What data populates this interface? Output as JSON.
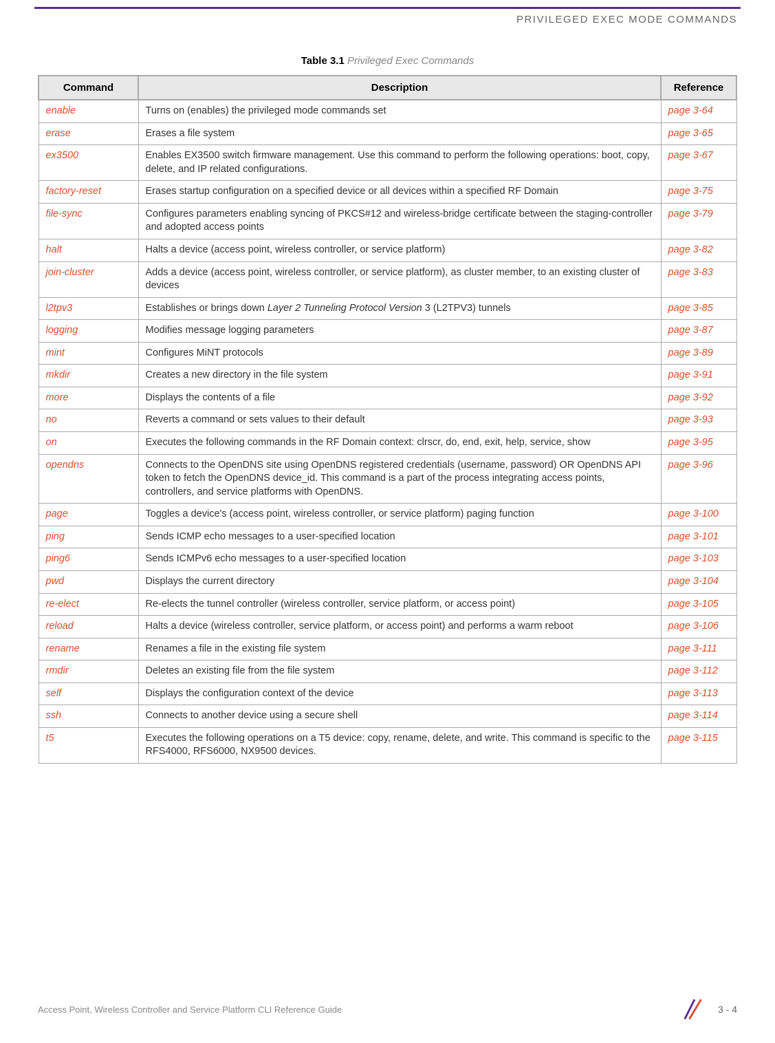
{
  "header": {
    "title": "PRIVILEGED EXEC MODE COMMANDS"
  },
  "table": {
    "caption_bold": "Table 3.1",
    "caption_italic": "  Privileged Exec Commands",
    "columns": [
      "Command",
      "Description",
      "Reference"
    ],
    "rows": [
      {
        "cmd": "enable",
        "desc": "Turns on (enables) the privileged mode commands set",
        "ref": "page 3-64"
      },
      {
        "cmd": "erase",
        "desc": "Erases a file system",
        "ref": "page 3-65"
      },
      {
        "cmd": "ex3500",
        "desc": "Enables EX3500 switch firmware management. Use this command to perform the following operations: boot, copy, delete, and IP related configurations.",
        "ref": "page 3-67"
      },
      {
        "cmd": "factory-reset",
        "desc": "Erases startup configuration on a specified device or all devices within a specified RF Domain",
        "ref": "page 3-75"
      },
      {
        "cmd": "file-sync",
        "desc": "Configures parameters enabling syncing of PKCS#12 and wireless-bridge certificate between the staging-controller and adopted access points",
        "ref": "page 3-79"
      },
      {
        "cmd": "halt",
        "desc": "Halts a device (access point, wireless controller, or service platform)",
        "ref": "page 3-82"
      },
      {
        "cmd": "join-cluster",
        "desc": "Adds a device (access point, wireless controller, or service platform), as cluster member, to an existing cluster of devices",
        "ref": "page 3-83"
      },
      {
        "cmd": "l2tpv3",
        "desc_pre": "Establishes or brings down ",
        "desc_italic": "Layer 2 Tunneling Protocol Version",
        "desc_post": " 3 (L2TPV3) tunnels",
        "ref": "page 3-85",
        "has_italic": true
      },
      {
        "cmd": "logging",
        "desc": "Modifies message logging parameters",
        "ref": "page 3-87"
      },
      {
        "cmd": "mint",
        "desc": "Configures MiNT protocols",
        "ref": "page 3-89"
      },
      {
        "cmd": "mkdir",
        "desc": "Creates a new directory in the file system",
        "ref": "page 3-91"
      },
      {
        "cmd": "more",
        "desc": "Displays the contents of a file",
        "ref": "page 3-92"
      },
      {
        "cmd": "no",
        "desc": "Reverts a command or sets values to their default",
        "ref": "page 3-93"
      },
      {
        "cmd": "on",
        "desc": "Executes the following commands in the RF Domain context: clrscr, do, end, exit, help, service, show",
        "ref": "page 3-95"
      },
      {
        "cmd": "opendns",
        "desc": "Connects to the OpenDNS site using OpenDNS registered credentials (username, password) OR OpenDNS API token to fetch the OpenDNS device_id. This command is a part of the process integrating access points, controllers, and service platforms with OpenDNS.",
        "ref": "page 3-96"
      },
      {
        "cmd": "page",
        "desc": "Toggles a device's (access point, wireless controller, or service platform) paging function",
        "ref": "page 3-100"
      },
      {
        "cmd": "ping",
        "desc": "Sends ICMP echo messages to a user-specified location",
        "ref": "page 3-101"
      },
      {
        "cmd": "ping6",
        "desc": "Sends ICMPv6 echo messages to a user-specified location",
        "ref": "page 3-103"
      },
      {
        "cmd": "pwd",
        "desc": "Displays the current directory",
        "ref": "page 3-104"
      },
      {
        "cmd": "re-elect",
        "desc": "Re-elects the tunnel controller (wireless controller, service platform, or access point)",
        "ref": "page 3-105"
      },
      {
        "cmd": "reload",
        "desc": "Halts a device (wireless controller, service platform, or access point) and performs a warm reboot",
        "ref": "page 3-106"
      },
      {
        "cmd": "rename",
        "desc": "Renames a file in the existing file system",
        "ref": "page 3-111"
      },
      {
        "cmd": "rmdir",
        "desc": "Deletes an existing file from the file system",
        "ref": "page 3-112"
      },
      {
        "cmd": "self",
        "desc": "Displays the configuration context of the device",
        "ref": "page 3-113"
      },
      {
        "cmd": "ssh",
        "desc": "Connects to another device using a secure shell",
        "ref": "page 3-114"
      },
      {
        "cmd": "t5",
        "desc": "Executes the following operations on a T5 device: copy, rename, delete, and write. This command is specific to the RFS4000, RFS6000, NX9500 devices.",
        "ref": "page 3-115"
      }
    ]
  },
  "footer": {
    "text": "Access Point, Wireless Controller and Service Platform CLI Reference Guide",
    "page": "3 - 4"
  },
  "colors": {
    "border_purple": "#5c2d91",
    "link_orange": "#d94f2a",
    "header_bg": "#e8e8e8",
    "border_gray": "#aaa"
  }
}
